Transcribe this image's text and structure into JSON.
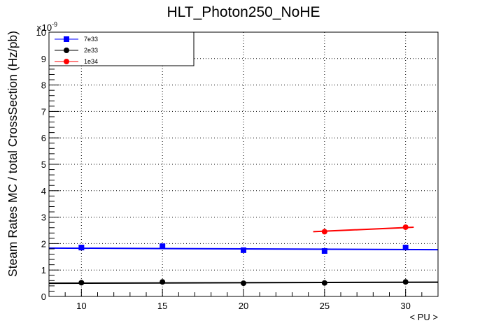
{
  "chart_data": {
    "type": "scatter",
    "title": "HLT_Photon250_NoHE",
    "xlabel": "< PU >",
    "ylabel": "Steam Rates MC / total CrossSection (Hz/pb)",
    "y_multiplier_label": "×10",
    "y_multiplier_exponent": "-9",
    "xlim": [
      8,
      32
    ],
    "ylim": [
      0,
      10
    ],
    "x_ticks": [
      10,
      15,
      20,
      25,
      30
    ],
    "y_ticks": [
      0,
      1,
      2,
      3,
      4,
      5,
      6,
      7,
      8,
      9,
      10
    ],
    "grid": true,
    "legend_position": "top-left",
    "series": [
      {
        "name": "7e33",
        "color": "#0000ff",
        "marker": "square",
        "x": [
          10,
          15,
          20,
          25,
          30
        ],
        "y": [
          1.85,
          1.9,
          1.75,
          1.72,
          1.85
        ],
        "fit": {
          "x": [
            8,
            32
          ],
          "y": [
            1.83,
            1.77
          ]
        }
      },
      {
        "name": "2e33",
        "color": "#000000",
        "marker": "circle",
        "x": [
          10,
          15,
          20,
          25,
          30
        ],
        "y": [
          0.52,
          0.55,
          0.5,
          0.51,
          0.55
        ],
        "fit": {
          "x": [
            8,
            32
          ],
          "y": [
            0.5,
            0.54
          ]
        }
      },
      {
        "name": "1e34",
        "color": "#ff0000",
        "marker": "circle",
        "x": [
          25,
          30
        ],
        "y": [
          2.45,
          2.62
        ],
        "fit": {
          "x": [
            24.3,
            30.5
          ],
          "y": [
            2.45,
            2.62
          ]
        }
      }
    ]
  }
}
